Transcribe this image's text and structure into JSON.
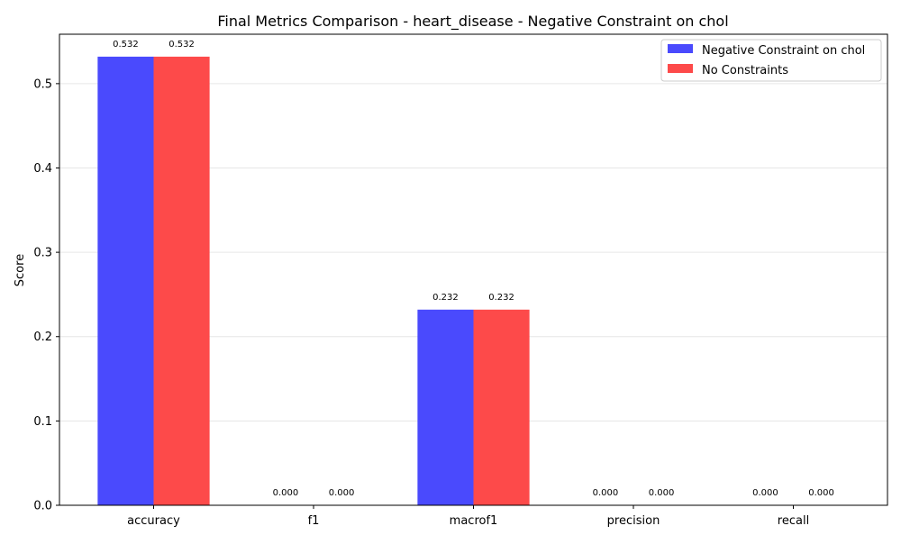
{
  "chart_data": {
    "type": "bar",
    "title": "Final Metrics Comparison - heart_disease - Negative Constraint on chol",
    "xlabel": "",
    "ylabel": "Score",
    "ylim": [
      0,
      0.5586
    ],
    "yticks": [
      0.0,
      0.1,
      0.2,
      0.3,
      0.4,
      0.5
    ],
    "ytick_labels": [
      "0.0",
      "0.1",
      "0.2",
      "0.3",
      "0.4",
      "0.5"
    ],
    "categories": [
      "accuracy",
      "f1",
      "macrof1",
      "precision",
      "recall"
    ],
    "grid": "y",
    "legend_position": "top-right",
    "series": [
      {
        "name": "Negative Constraint on chol",
        "color": "#4a4afd",
        "values": [
          0.532,
          0.0,
          0.232,
          0.0,
          0.0
        ],
        "value_labels": [
          "0.532",
          "0.000",
          "0.232",
          "0.000",
          "0.000"
        ]
      },
      {
        "name": "No Constraints",
        "color": "#fd4a4a",
        "values": [
          0.532,
          0.0,
          0.232,
          0.0,
          0.0
        ],
        "value_labels": [
          "0.532",
          "0.000",
          "0.232",
          "0.000",
          "0.000"
        ]
      }
    ]
  }
}
